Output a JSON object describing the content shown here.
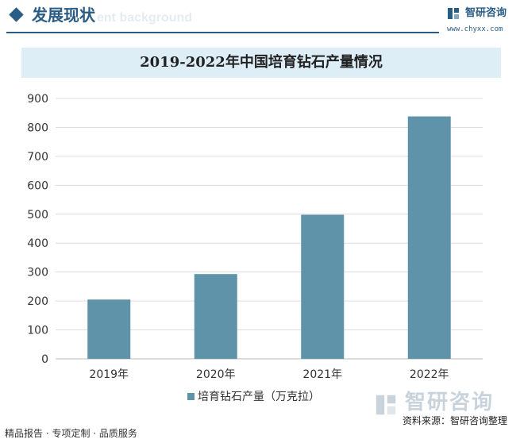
{
  "header": {
    "section_title": "发展现状",
    "section_subtitle": "ent background",
    "brand_name": "智研咨询",
    "brand_url": "www.chyxx.com"
  },
  "chart_data": {
    "type": "bar",
    "title": "2019-2022年中国培育钻石产量情况",
    "categories": [
      "2019年",
      "2020年",
      "2021年",
      "2022年"
    ],
    "series": [
      {
        "name": "培育钻石产量（万克拉）",
        "values": [
          205,
          293,
          498,
          838
        ]
      }
    ],
    "yticks": [
      0,
      100,
      200,
      300,
      400,
      500,
      600,
      700,
      800,
      900
    ],
    "ylim": [
      0,
      900
    ],
    "grid": true,
    "legend_position": "bottom",
    "bar_color": "#5e93aa"
  },
  "footer": {
    "left_text": "精品报告 · 专项定制 · 品质服务",
    "source_text": "资料来源：智研咨询整理",
    "source_brand": "智研咨询"
  }
}
